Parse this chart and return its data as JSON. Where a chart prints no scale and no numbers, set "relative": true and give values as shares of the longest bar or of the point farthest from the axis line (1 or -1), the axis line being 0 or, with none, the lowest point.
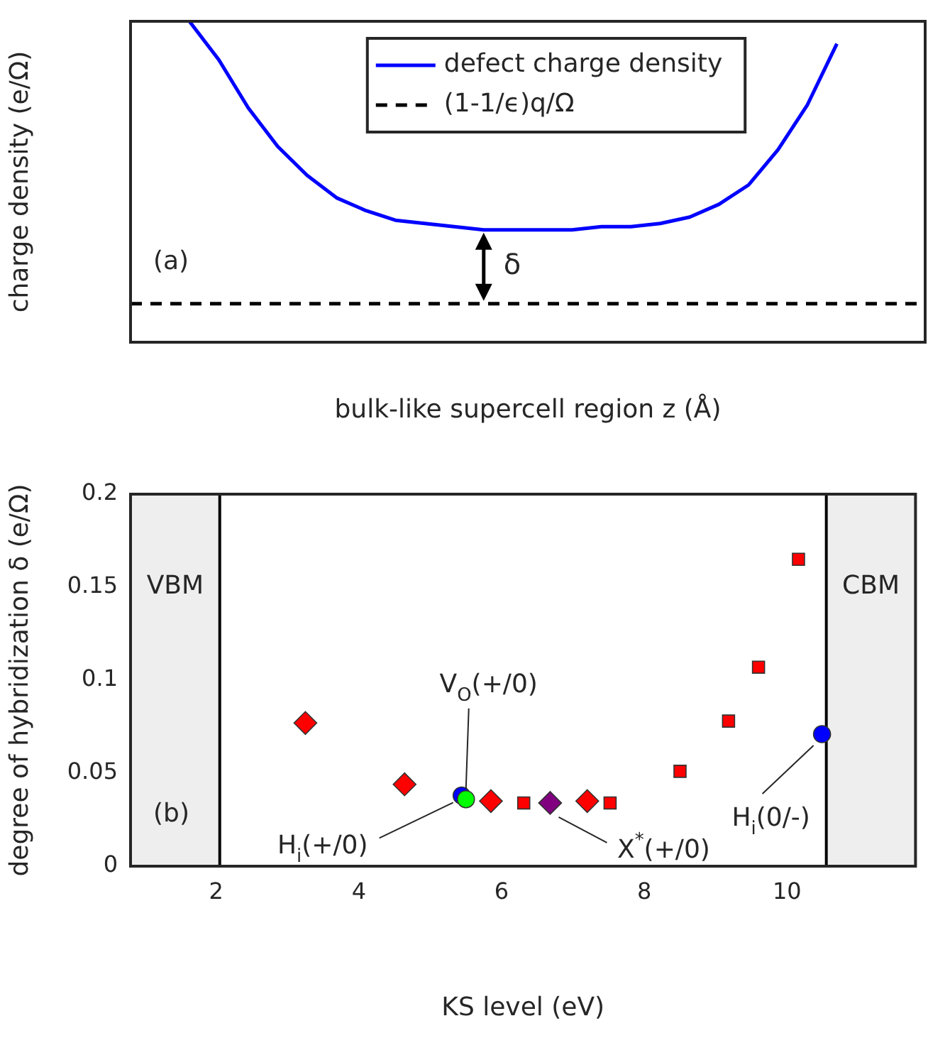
{
  "chart_data": [
    {
      "type": "line",
      "relative": true,
      "xlabel": "bulk-like supercell region z (Å)",
      "ylabel": "charge density (e/Ω)",
      "legend": "top",
      "annotations": [
        "(a)",
        "δ"
      ],
      "categories": [
        null,
        null,
        null,
        null,
        null,
        null,
        null,
        null,
        null,
        null,
        null,
        null,
        null,
        null,
        null,
        null,
        null,
        null,
        null,
        null,
        null,
        null,
        null,
        null,
        null,
        null,
        null,
        null
      ],
      "series": [
        {
          "name": "defect charge density",
          "color": "#0000ff",
          "values": [
            null,
            null,
            1,
            0.88,
            0.73,
            0.61,
            0.52,
            0.45,
            0.41,
            0.38,
            0.37,
            0.36,
            0.35,
            0.35,
            0.35,
            0.35,
            0.36,
            0.36,
            0.37,
            0.39,
            0.43,
            0.49,
            0.6,
            0.74,
            0.93,
            null,
            null,
            null
          ]
        },
        {
          "name": "(1-1/ϵ)q/Ω",
          "color": "#000000",
          "line_style": "dashed",
          "values": [
            0.12,
            0.12,
            0.12,
            0.12,
            0.12,
            0.12,
            0.12,
            0.12,
            0.12,
            0.12,
            0.12,
            0.12,
            0.12,
            0.12,
            0.12,
            0.12,
            0.12,
            0.12,
            0.12,
            0.12,
            0.12,
            0.12,
            0.12,
            0.12,
            0.12,
            0.12,
            0.12,
            0.12
          ]
        }
      ]
    },
    {
      "type": "scatter",
      "xlabel": "KS level (eV)",
      "ylabel": "degree of hybridization δ (e/Ω)",
      "xlim": [
        0.8,
        11.8
      ],
      "ylim": [
        0,
        0.2
      ],
      "xticks": [
        2,
        4,
        6,
        8,
        10
      ],
      "yticks": [
        0,
        0.05,
        0.1,
        0.15,
        0.2
      ],
      "bands": [
        {
          "axis": "x",
          "from": 0.8,
          "to": 2.05,
          "label": "VBM",
          "color": "#eeeeee"
        },
        {
          "axis": "x",
          "from": 10.55,
          "to": 11.8,
          "label": "CBM",
          "color": "#eeeeee"
        }
      ],
      "ref_lines": [
        {
          "axis": "x",
          "value": 2.05,
          "color": "#000000"
        },
        {
          "axis": "x",
          "value": 10.55,
          "color": "#000000"
        }
      ],
      "annotations": [
        "(b)",
        {
          "text": "V$_{O}$(+/0)",
          "x": 5.5,
          "y": 0.036
        },
        {
          "text": "H$_{i}$(+/0)",
          "x": 5.44,
          "y": 0.038
        },
        {
          "text": "X$^{*}$(+/0)",
          "x": 6.68,
          "y": 0.034
        },
        {
          "text": "H$_{i}$(0/-)",
          "x": 10.49,
          "y": 0.071
        }
      ],
      "series": [
        {
          "color": "#ff0000",
          "marker": "diamond",
          "x": [
            3.25,
            4.64,
            5.85,
            7.2
          ],
          "values": [
            0.077,
            0.044,
            0.035,
            0.035
          ]
        },
        {
          "color": "#ff0000",
          "marker": "square",
          "x": [
            6.31,
            7.52,
            8.5,
            9.18,
            9.6,
            10.16
          ],
          "values": [
            0.034,
            0.034,
            0.051,
            0.078,
            0.107,
            0.165
          ]
        },
        {
          "color": "#0000ff",
          "marker": "circle",
          "x": [
            5.44,
            10.49
          ],
          "values": [
            0.038,
            0.071
          ]
        },
        {
          "color": "#00ff00",
          "marker": "circle",
          "x": [
            5.5
          ],
          "values": [
            0.036
          ]
        },
        {
          "color": "#800080",
          "marker": "diamond",
          "x": [
            6.68
          ],
          "values": [
            0.034
          ]
        }
      ]
    }
  ]
}
